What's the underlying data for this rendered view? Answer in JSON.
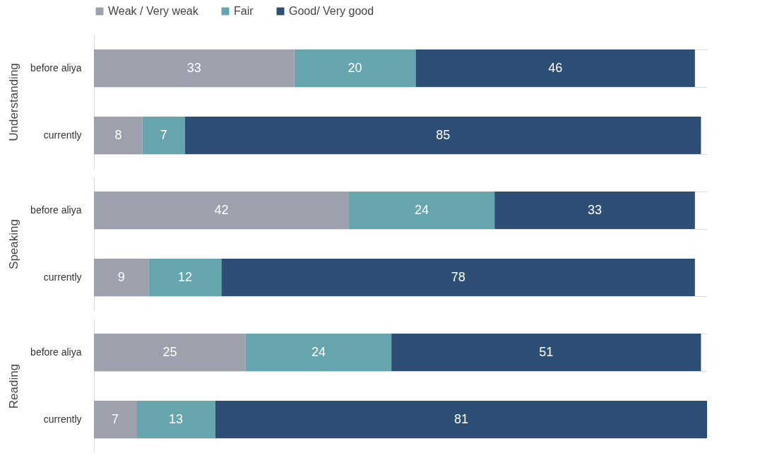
{
  "chart_data": [
    {
      "type": "bar",
      "orientation": "horizontal",
      "stacked": true,
      "ylabel": "Understanding",
      "categories": [
        "before aliya",
        "currently"
      ],
      "xlim": [
        0,
        101
      ],
      "tick_labels": "y",
      "data_labels": true,
      "grid": "y",
      "legend": "top",
      "series": [
        {
          "name": "Weak / Very weak",
          "color": "#9da1ad",
          "values": [
            33,
            8
          ]
        },
        {
          "name": "Fair",
          "color": "#67a5ae",
          "values": [
            20,
            7
          ]
        },
        {
          "name": "Good/ Very good",
          "color": "#2d4f76",
          "values": [
            46,
            85
          ]
        }
      ]
    },
    {
      "type": "bar",
      "orientation": "horizontal",
      "stacked": true,
      "ylabel": "Speaking",
      "categories": [
        "before aliya",
        "currently"
      ],
      "xlim": [
        0,
        101
      ],
      "tick_labels": "y",
      "data_labels": true,
      "grid": "y",
      "legend": "top",
      "series": [
        {
          "name": "Weak / Very weak",
          "color": "#9da1ad",
          "values": [
            42,
            9
          ]
        },
        {
          "name": "Fair",
          "color": "#67a5ae",
          "values": [
            24,
            12
          ]
        },
        {
          "name": "Good/ Very good",
          "color": "#2d4f76",
          "values": [
            33,
            78
          ]
        }
      ]
    },
    {
      "type": "bar",
      "orientation": "horizontal",
      "stacked": true,
      "ylabel": "Reading",
      "categories": [
        "before aliya",
        "currently"
      ],
      "xlim": [
        0,
        101
      ],
      "tick_labels": "y",
      "data_labels": true,
      "grid": "y",
      "legend": "top",
      "series": [
        {
          "name": "Weak / Very weak",
          "color": "#9da1ad",
          "values": [
            25,
            7
          ]
        },
        {
          "name": "Fair",
          "color": "#67a5ae",
          "values": [
            24,
            13
          ]
        },
        {
          "name": "Good/ Very good",
          "color": "#2d4f76",
          "values": [
            51,
            81
          ]
        }
      ]
    }
  ]
}
